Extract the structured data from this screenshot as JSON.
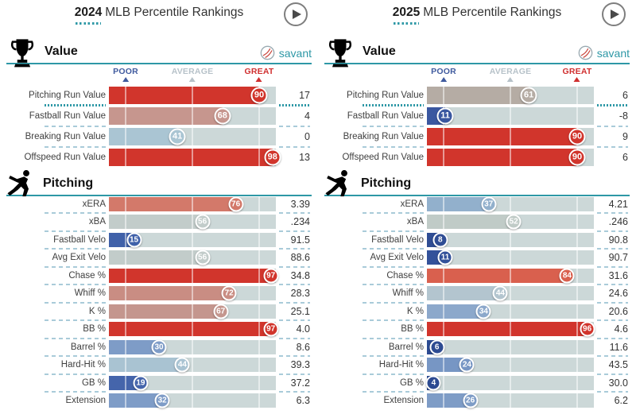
{
  "scale_labels": {
    "poor": "POOR",
    "average": "AVERAGE",
    "great": "GREAT"
  },
  "brand": {
    "savant": "savant",
    "teal": "#2e98a6",
    "poor_color": "#3f5a9e",
    "average_color": "#b7c2c9",
    "great_color": "#d02f2f",
    "track_color": "#ccd8d8"
  },
  "chart_data": [
    {
      "type": "bar",
      "year": "2024",
      "title": "MLB Percentile Rankings",
      "scale": {
        "min": 0,
        "max": 100,
        "markers": {
          "poor": 10,
          "average": 50,
          "great": 90
        }
      },
      "sections": [
        {
          "name": "Value",
          "icon": "trophy-icon",
          "rows": [
            {
              "label": "Pitching Run Value",
              "percentile": 90,
              "value": "17",
              "color": "#d1352c",
              "highlight_sep": true
            },
            {
              "label": "Fastball Run Value",
              "percentile": 68,
              "value": "4",
              "color": "#c6968e"
            },
            {
              "label": "Breaking Run Value",
              "percentile": 41,
              "value": "0",
              "color": "#aac5d3"
            },
            {
              "label": "Offspeed Run Value",
              "percentile": 98,
              "value": "13",
              "color": "#d1352c"
            }
          ]
        },
        {
          "name": "Pitching",
          "icon": "pitcher-icon",
          "rows": [
            {
              "label": "xERA",
              "percentile": 76,
              "value": "3.39",
              "color": "#d3796a"
            },
            {
              "label": "xBA",
              "percentile": 56,
              "value": ".234",
              "color": "#c2ccca"
            },
            {
              "label": "Fastball Velo",
              "percentile": 15,
              "value": "91.5",
              "color": "#4061a9"
            },
            {
              "label": "Avg Exit Velo",
              "percentile": 56,
              "value": "88.6",
              "color": "#c2ccca"
            },
            {
              "label": "Chase %",
              "percentile": 97,
              "value": "34.8",
              "color": "#d1352c"
            },
            {
              "label": "Whiff %",
              "percentile": 72,
              "value": "28.3",
              "color": "#c98d83"
            },
            {
              "label": "K %",
              "percentile": 67,
              "value": "25.1",
              "color": "#c4968e"
            },
            {
              "label": "BB %",
              "percentile": 97,
              "value": "4.0",
              "color": "#d1352c"
            },
            {
              "label": "Barrel %",
              "percentile": 30,
              "value": "8.6",
              "color": "#7e9cc7"
            },
            {
              "label": "Hard-Hit %",
              "percentile": 44,
              "value": "39.3",
              "color": "#a9c3d2"
            },
            {
              "label": "GB %",
              "percentile": 19,
              "value": "37.2",
              "color": "#4565ab"
            },
            {
              "label": "Extension",
              "percentile": 32,
              "value": "6.3",
              "color": "#7e9cc7"
            }
          ]
        }
      ]
    },
    {
      "type": "bar",
      "year": "2025",
      "title": "MLB Percentile Rankings",
      "scale": {
        "min": 0,
        "max": 100,
        "markers": {
          "poor": 10,
          "average": 50,
          "great": 90
        }
      },
      "sections": [
        {
          "name": "Value",
          "icon": "trophy-icon",
          "rows": [
            {
              "label": "Pitching Run Value",
              "percentile": 61,
              "value": "6",
              "color": "#b5aca4",
              "highlight_sep": true
            },
            {
              "label": "Fastball Run Value",
              "percentile": 11,
              "value": "-8",
              "color": "#3a57a0"
            },
            {
              "label": "Breaking Run Value",
              "percentile": 90,
              "value": "9",
              "color": "#d1352c"
            },
            {
              "label": "Offspeed Run Value",
              "percentile": 90,
              "value": "6",
              "color": "#d1352c"
            }
          ]
        },
        {
          "name": "Pitching",
          "icon": "pitcher-icon",
          "rows": [
            {
              "label": "xERA",
              "percentile": 37,
              "value": "4.21",
              "color": "#92b0cc"
            },
            {
              "label": "xBA",
              "percentile": 52,
              "value": ".246",
              "color": "#c0cbc7"
            },
            {
              "label": "Fastball Velo",
              "percentile": 8,
              "value": "90.8",
              "color": "#2f4d94"
            },
            {
              "label": "Avg Exit Velo",
              "percentile": 11,
              "value": "90.7",
              "color": "#33519a"
            },
            {
              "label": "Chase %",
              "percentile": 84,
              "value": "31.6",
              "color": "#d9604e"
            },
            {
              "label": "Whiff %",
              "percentile": 44,
              "value": "24.6",
              "color": "#b3c5cf"
            },
            {
              "label": "K %",
              "percentile": 34,
              "value": "20.6",
              "color": "#8ca8cb"
            },
            {
              "label": "BB %",
              "percentile": 96,
              "value": "4.6",
              "color": "#d1342c"
            },
            {
              "label": "Barrel %",
              "percentile": 6,
              "value": "11.6",
              "color": "#2d4b92"
            },
            {
              "label": "Hard-Hit %",
              "percentile": 24,
              "value": "43.5",
              "color": "#7796c4"
            },
            {
              "label": "GB %",
              "percentile": 4,
              "value": "30.0",
              "color": "#2c4a91"
            },
            {
              "label": "Extension",
              "percentile": 26,
              "value": "6.2",
              "color": "#7e9cc6"
            }
          ]
        }
      ]
    }
  ]
}
